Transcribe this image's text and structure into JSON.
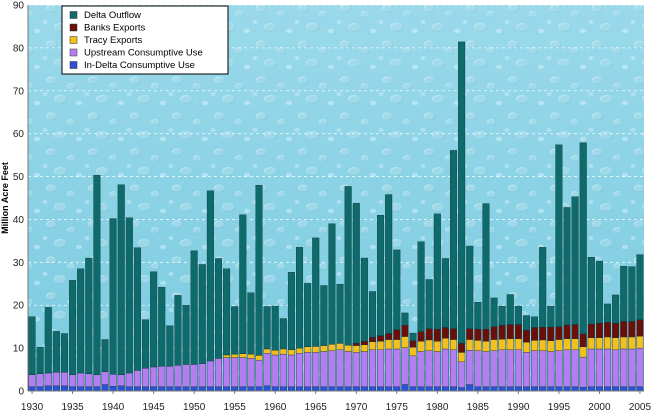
{
  "chart_data": {
    "type": "bar",
    "stacked": true,
    "title": "",
    "xlabel": "",
    "ylabel": "Million Acre Feet",
    "ylim": [
      0,
      90
    ],
    "yticks": [
      "0",
      "10",
      "20",
      "30",
      "40",
      "50",
      "60",
      "70",
      "80",
      "90"
    ],
    "xlim": [
      1929.5,
      2005.5
    ],
    "xticks": [
      "1930",
      "1935",
      "1940",
      "1945",
      "1950",
      "1955",
      "1960",
      "1965",
      "1970",
      "1975",
      "1980",
      "1985",
      "1990",
      "1995",
      "2000",
      "2005"
    ],
    "grid": "horizontal dashed",
    "legend_position": "top-left",
    "background": "water-droplet texture",
    "years": [
      1930,
      1931,
      1932,
      1933,
      1934,
      1935,
      1936,
      1937,
      1938,
      1939,
      1940,
      1941,
      1942,
      1943,
      1944,
      1945,
      1946,
      1947,
      1948,
      1949,
      1950,
      1951,
      1952,
      1953,
      1954,
      1955,
      1956,
      1957,
      1958,
      1959,
      1960,
      1961,
      1962,
      1963,
      1964,
      1965,
      1966,
      1967,
      1968,
      1969,
      1970,
      1971,
      1972,
      1973,
      1974,
      1975,
      1976,
      1977,
      1978,
      1979,
      1980,
      1981,
      1982,
      1983,
      1984,
      1985,
      1986,
      1987,
      1988,
      1989,
      1990,
      1991,
      1992,
      1993,
      1994,
      1995,
      1996,
      1997,
      1998,
      1999,
      2000,
      2001,
      2002,
      2003,
      2004,
      2005
    ],
    "series": [
      {
        "name": "In-Delta Consumptive Use",
        "color": "#2f4fd6",
        "values": [
          1.0,
          1.0,
          1.2,
          1.2,
          1.2,
          1.0,
          1.0,
          1.0,
          1.0,
          1.5,
          1.1,
          1.2,
          1.0,
          1.0,
          1.0,
          1.0,
          1.0,
          1.0,
          1.0,
          1.0,
          1.0,
          1.0,
          1.0,
          1.0,
          1.0,
          1.0,
          1.0,
          1.0,
          1.0,
          1.2,
          1.0,
          1.0,
          1.0,
          1.0,
          1.0,
          1.0,
          1.0,
          1.0,
          1.0,
          1.0,
          1.0,
          1.0,
          1.0,
          1.0,
          1.0,
          1.0,
          1.5,
          1.0,
          1.0,
          1.0,
          1.0,
          1.0,
          1.0,
          0.8,
          1.5,
          1.0,
          1.0,
          1.0,
          1.0,
          1.0,
          1.0,
          1.0,
          1.0,
          1.0,
          1.0,
          1.0,
          1.0,
          1.0,
          0.9,
          1.0,
          1.0,
          1.0,
          1.0,
          1.0,
          1.0,
          1.0
        ]
      },
      {
        "name": "Upstream Consumptive Use",
        "color": "#b57ef0",
        "values": [
          2.8,
          3.0,
          3.0,
          3.2,
          3.2,
          2.8,
          3.2,
          3.0,
          2.8,
          3.0,
          2.8,
          2.6,
          3.2,
          3.8,
          4.3,
          4.6,
          4.8,
          4.8,
          5.0,
          5.2,
          5.2,
          5.4,
          6.0,
          6.6,
          6.8,
          6.8,
          6.8,
          6.6,
          6.2,
          7.6,
          7.4,
          7.6,
          7.4,
          7.8,
          8.0,
          8.0,
          8.2,
          8.4,
          8.6,
          8.2,
          8.0,
          8.2,
          8.6,
          8.6,
          8.8,
          8.8,
          8.6,
          7.2,
          8.2,
          8.4,
          8.2,
          8.8,
          8.6,
          6.0,
          8.0,
          8.4,
          8.2,
          8.4,
          8.6,
          8.6,
          8.6,
          8.0,
          8.4,
          8.4,
          8.2,
          8.4,
          8.6,
          8.6,
          7.0,
          8.8,
          8.8,
          8.8,
          8.6,
          8.8,
          8.8,
          9.0
        ]
      },
      {
        "name": "Tracy Exports",
        "color": "#f5c01f",
        "values": [
          0,
          0,
          0,
          0,
          0,
          0,
          0,
          0,
          0,
          0,
          0,
          0,
          0,
          0,
          0,
          0,
          0,
          0,
          0,
          0,
          0,
          0,
          0,
          0,
          0.6,
          0.8,
          0.9,
          1.0,
          1.1,
          1.0,
          1.1,
          1.2,
          1.2,
          1.2,
          1.3,
          1.4,
          1.4,
          1.5,
          1.5,
          1.5,
          1.6,
          1.6,
          1.9,
          2.0,
          2.2,
          2.2,
          2.6,
          2.0,
          2.4,
          2.5,
          2.4,
          2.5,
          2.4,
          2.2,
          2.5,
          2.4,
          2.4,
          2.6,
          2.5,
          2.6,
          2.6,
          2.4,
          2.4,
          2.5,
          2.5,
          2.6,
          2.6,
          2.6,
          2.4,
          2.6,
          2.6,
          2.8,
          2.8,
          2.8,
          2.8,
          2.8
        ]
      },
      {
        "name": "Banks Exports",
        "color": "#6b1008",
        "values": [
          0,
          0,
          0,
          0,
          0,
          0,
          0,
          0,
          0,
          0,
          0,
          0,
          0,
          0,
          0,
          0,
          0,
          0,
          0,
          0,
          0,
          0,
          0,
          0,
          0,
          0,
          0,
          0,
          0,
          0,
          0,
          0,
          0,
          0,
          0,
          0,
          0,
          0,
          0,
          0,
          0.5,
          0.8,
          1.0,
          1.3,
          1.4,
          2.3,
          2.6,
          1.5,
          2.2,
          2.6,
          2.8,
          2.5,
          2.5,
          2.1,
          2.5,
          2.6,
          2.8,
          3.0,
          3.2,
          3.3,
          3.3,
          2.8,
          3.0,
          3.0,
          3.2,
          3.0,
          3.2,
          3.3,
          3.0,
          3.2,
          3.4,
          3.4,
          3.4,
          3.6,
          3.6,
          3.8
        ]
      },
      {
        "name": "Delta Outflow",
        "color": "#0f6b6b",
        "values": [
          13.5,
          6.2,
          15.3,
          9.5,
          9.0,
          22.0,
          24.3,
          27.0,
          46.5,
          7.5,
          36.3,
          44.3,
          36.2,
          28.6,
          11.3,
          22.2,
          18.4,
          9.4,
          16.3,
          13.8,
          26.5,
          23.1,
          39.7,
          23.3,
          20.1,
          11.1,
          32.4,
          14.3,
          39.7,
          9.9,
          10.3,
          7.1,
          18.1,
          23.5,
          14.8,
          25.3,
          14.0,
          28.1,
          13.8,
          37.0,
          32.7,
          19.4,
          10.7,
          28.1,
          32.4,
          18.6,
          2.9,
          1.8,
          21.0,
          11.5,
          26.9,
          16.1,
          41.6,
          70.3,
          19.3,
          6.3,
          29.3,
          6.7,
          4.5,
          7.0,
          4.3,
          3.4,
          2.5,
          18.6,
          4.9,
          42.4,
          27.4,
          29.8,
          44.6,
          15.6,
          14.5,
          4.3,
          6.6,
          12.9,
          12.8,
          15.2
        ]
      }
    ]
  }
}
